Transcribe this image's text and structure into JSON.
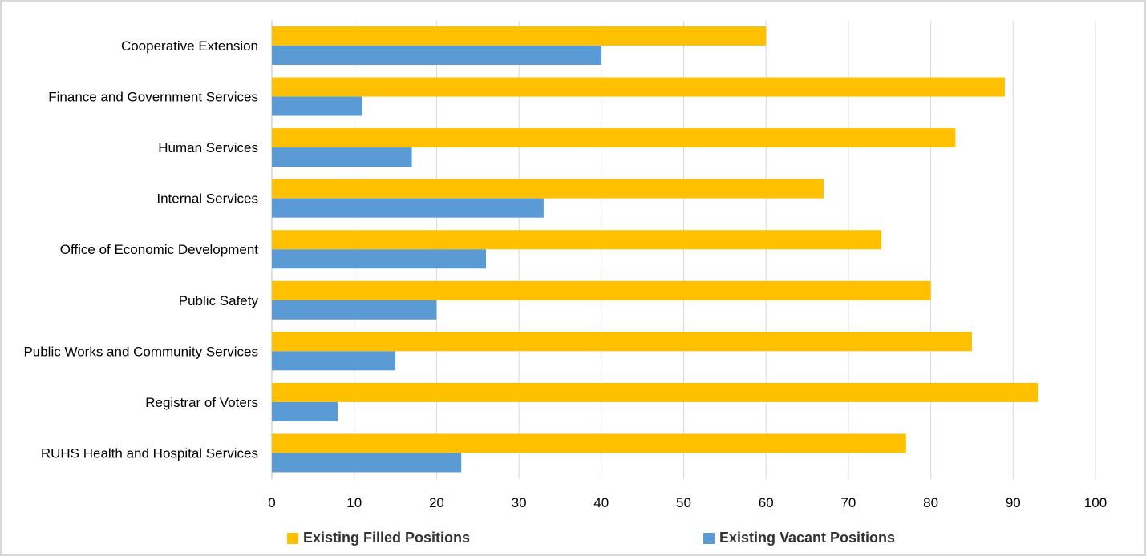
{
  "chart_data": {
    "type": "bar",
    "orientation": "horizontal",
    "categories": [
      "Cooperative Extension",
      "Finance and Government Services",
      "Human Services",
      "Internal Services",
      "Office of Economic Development",
      "Public Safety",
      "Public Works and Community Services",
      "Registrar of Voters",
      "RUHS Health and Hospital Services"
    ],
    "series": [
      {
        "name": "Existing Filled Positions",
        "color": "#FFC000",
        "values": [
          60,
          89,
          83,
          67,
          74,
          80,
          85,
          93,
          77
        ]
      },
      {
        "name": "Existing Vacant Positions",
        "color": "#5B9BD5",
        "values": [
          40,
          11,
          17,
          33,
          26,
          20,
          15,
          8,
          23
        ]
      }
    ],
    "xlim": [
      0,
      100
    ],
    "xticks": [
      "0",
      "10",
      "20",
      "30",
      "40",
      "50",
      "60",
      "70",
      "80",
      "90",
      "100"
    ],
    "grid": true,
    "legend_position": "bottom",
    "title": "",
    "xlabel": "",
    "ylabel": ""
  }
}
